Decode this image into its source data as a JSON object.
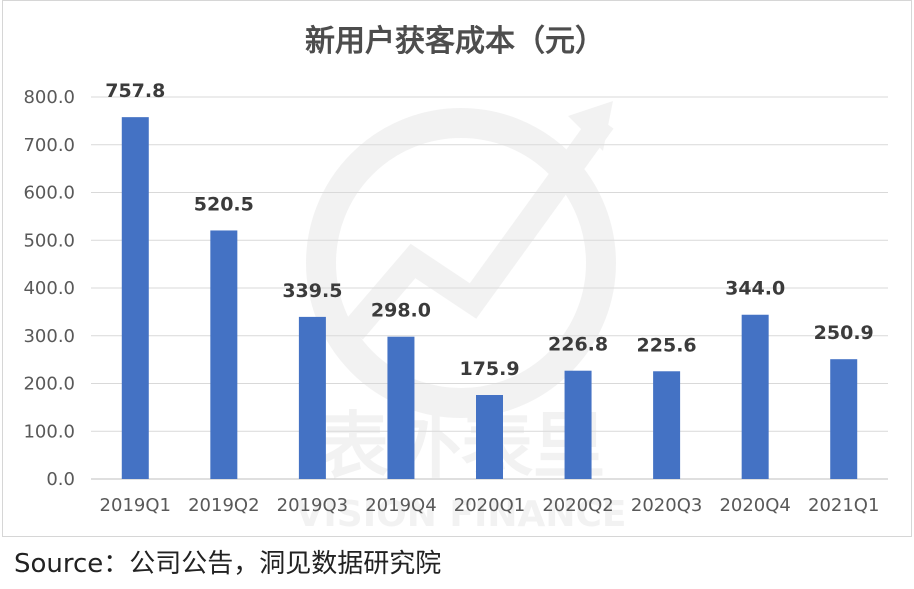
{
  "chart_data": {
    "type": "bar",
    "title": "新用户获客成本（元）",
    "categories": [
      "2019Q1",
      "2019Q2",
      "2019Q3",
      "2019Q4",
      "2020Q1",
      "2020Q2",
      "2020Q3",
      "2020Q4",
      "2021Q1"
    ],
    "values": [
      757.8,
      520.5,
      339.5,
      298.0,
      175.9,
      226.8,
      225.6,
      344.0,
      250.9
    ],
    "value_labels": [
      "757.8",
      "520.5",
      "339.5",
      "298.0",
      "175.9",
      "226.8",
      "225.6",
      "344.0",
      "250.9"
    ],
    "ylim": [
      0,
      800
    ],
    "yticks": [
      "0.0",
      "100.0",
      "200.0",
      "300.0",
      "400.0",
      "500.0",
      "600.0",
      "700.0",
      "800.0"
    ],
    "grid": true,
    "bar_color": "#4472c4",
    "xlabel": "",
    "ylabel": ""
  },
  "watermark": {
    "text_cn": "表外表里",
    "text_en": "VISION FINANCE"
  },
  "source_note": "Source：公司公告，洞见数据研究院"
}
